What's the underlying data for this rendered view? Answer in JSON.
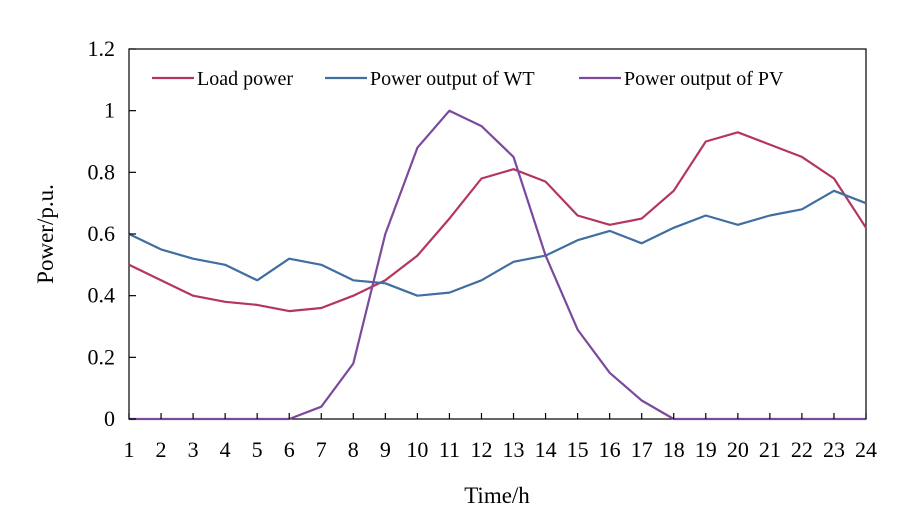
{
  "chart_data": {
    "type": "line",
    "x": [
      1,
      2,
      3,
      4,
      5,
      6,
      7,
      8,
      9,
      10,
      11,
      12,
      13,
      14,
      15,
      16,
      17,
      18,
      19,
      20,
      21,
      22,
      23,
      24
    ],
    "xlabel": "Time/h",
    "ylabel": "Power/p.u.",
    "xlim": [
      1,
      24
    ],
    "ylim": [
      0,
      1.2
    ],
    "y_ticks": [
      "0",
      "0.2",
      "0.4",
      "0.6",
      "0.8",
      "1",
      "1.2"
    ],
    "grid": false,
    "legend_position": "top",
    "series": [
      {
        "name": "Load power",
        "color": "#b5365d",
        "values": [
          0.5,
          0.45,
          0.4,
          0.38,
          0.37,
          0.35,
          0.36,
          0.4,
          0.45,
          0.53,
          0.65,
          0.78,
          0.81,
          0.77,
          0.66,
          0.63,
          0.65,
          0.74,
          0.9,
          0.93,
          0.89,
          0.85,
          0.78,
          0.62
        ]
      },
      {
        "name": "Power output of WT",
        "color": "#3f6fa0",
        "values": [
          0.6,
          0.55,
          0.52,
          0.5,
          0.45,
          0.52,
          0.5,
          0.45,
          0.44,
          0.4,
          0.41,
          0.45,
          0.51,
          0.53,
          0.58,
          0.61,
          0.57,
          0.62,
          0.66,
          0.63,
          0.66,
          0.68,
          0.74,
          0.7
        ]
      },
      {
        "name": "Power output of PV",
        "color": "#7b4a9c",
        "values": [
          0,
          0,
          0,
          0,
          0,
          0,
          0.04,
          0.18,
          0.6,
          0.88,
          1.0,
          0.95,
          0.85,
          0.53,
          0.29,
          0.15,
          0.06,
          0,
          0,
          0,
          0,
          0,
          0,
          0
        ]
      }
    ]
  }
}
